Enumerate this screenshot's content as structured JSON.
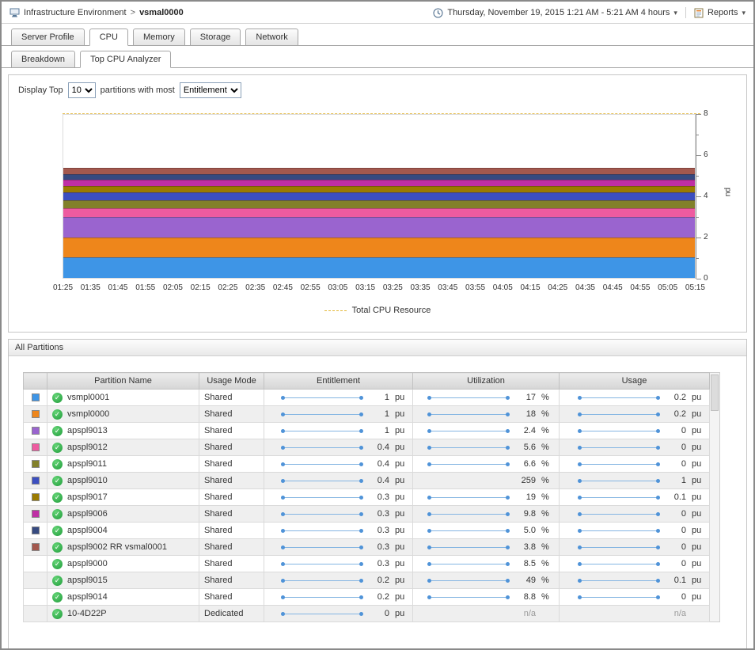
{
  "breadcrumb": {
    "root": "Infrastructure Environment",
    "separator": ">",
    "current": "vsmal0000"
  },
  "header": {
    "time_range": "Thursday, November 19, 2015 1:21 AM - 5:21 AM 4 hours",
    "reports": "Reports"
  },
  "main_tabs": [
    {
      "label": "Server Profile",
      "active": false
    },
    {
      "label": "CPU",
      "active": true
    },
    {
      "label": "Memory",
      "active": false
    },
    {
      "label": "Storage",
      "active": false
    },
    {
      "label": "Network",
      "active": false
    }
  ],
  "sub_tabs": [
    {
      "label": "Breakdown",
      "active": false
    },
    {
      "label": "Top CPU Analyzer",
      "active": true
    }
  ],
  "controls": {
    "prefix": "Display Top",
    "top_count": "10",
    "middle": "partitions with most",
    "metric": "Entitlement"
  },
  "chart_data": {
    "type": "area",
    "stacked": true,
    "ylabel": "pu",
    "ylim": [
      0,
      8
    ],
    "yticks_major": [
      0,
      2,
      4,
      6,
      8
    ],
    "yticks_minor": [
      1,
      3,
      5,
      7
    ],
    "x": [
      "01:25",
      "01:35",
      "01:45",
      "01:55",
      "02:05",
      "02:15",
      "02:25",
      "02:35",
      "02:45",
      "02:55",
      "03:05",
      "03:15",
      "03:25",
      "03:35",
      "03:45",
      "03:55",
      "04:05",
      "04:15",
      "04:25",
      "04:35",
      "04:45",
      "04:55",
      "05:05",
      "05:15"
    ],
    "series": [
      {
        "name": "vsmpl0001",
        "color": "#3e95e6",
        "value": 1.0
      },
      {
        "name": "vsmpl0000",
        "color": "#ee861b",
        "value": 1.0
      },
      {
        "name": "apspl9013",
        "color": "#9a64cf",
        "value": 1.0
      },
      {
        "name": "apspl9012",
        "color": "#ee5ba0",
        "value": 0.4
      },
      {
        "name": "apspl9011",
        "color": "#82802a",
        "value": 0.4
      },
      {
        "name": "apspl9010",
        "color": "#3c4fc0",
        "value": 0.4
      },
      {
        "name": "apspl9017",
        "color": "#9b7b00",
        "value": 0.3
      },
      {
        "name": "apspl9006",
        "color": "#bf2fa5",
        "value": 0.3
      },
      {
        "name": "apspl9004",
        "color": "#364a80",
        "value": 0.3
      },
      {
        "name": "apspl9002 RR vsmal0001",
        "color": "#a3584e",
        "value": 0.3
      }
    ],
    "total_line": {
      "label": "Total CPU Resource",
      "value": 8,
      "color": "#e8c35b"
    },
    "legend": {
      "label": "Total CPU Resource"
    }
  },
  "partitions_panel": {
    "title": "All Partitions",
    "columns": {
      "swatch": "",
      "name": "Partition Name",
      "mode": "Usage Mode",
      "entitlement": "Entitlement",
      "utilization": "Utilization",
      "usage": "Usage"
    },
    "rows": [
      {
        "swatch": "#3e95e6",
        "name": "vsmpl0001",
        "mode": "Shared",
        "entitlement": {
          "value": "1",
          "unit": "pu",
          "spark": true
        },
        "utilization": {
          "value": "17",
          "unit": "%",
          "spark": true
        },
        "usage": {
          "value": "0.2",
          "unit": "pu",
          "spark": true
        }
      },
      {
        "swatch": "#ee861b",
        "name": "vsmpl0000",
        "mode": "Shared",
        "entitlement": {
          "value": "1",
          "unit": "pu",
          "spark": true
        },
        "utilization": {
          "value": "18",
          "unit": "%",
          "spark": true
        },
        "usage": {
          "value": "0.2",
          "unit": "pu",
          "spark": true
        }
      },
      {
        "swatch": "#9a64cf",
        "name": "apspl9013",
        "mode": "Shared",
        "entitlement": {
          "value": "1",
          "unit": "pu",
          "spark": true
        },
        "utilization": {
          "value": "2.4",
          "unit": "%",
          "spark": true
        },
        "usage": {
          "value": "0",
          "unit": "pu",
          "spark": true
        }
      },
      {
        "swatch": "#ee5ba0",
        "name": "apspl9012",
        "mode": "Shared",
        "entitlement": {
          "value": "0.4",
          "unit": "pu",
          "spark": true
        },
        "utilization": {
          "value": "5.6",
          "unit": "%",
          "spark": true
        },
        "usage": {
          "value": "0",
          "unit": "pu",
          "spark": true
        }
      },
      {
        "swatch": "#82802a",
        "name": "apspl9011",
        "mode": "Shared",
        "entitlement": {
          "value": "0.4",
          "unit": "pu",
          "spark": true
        },
        "utilization": {
          "value": "6.6",
          "unit": "%",
          "spark": true
        },
        "usage": {
          "value": "0",
          "unit": "pu",
          "spark": true
        }
      },
      {
        "swatch": "#3c4fc0",
        "name": "apspl9010",
        "mode": "Shared",
        "entitlement": {
          "value": "0.4",
          "unit": "pu",
          "spark": true
        },
        "utilization": {
          "value": "259",
          "unit": "%",
          "spark": false
        },
        "usage": {
          "value": "1",
          "unit": "pu",
          "spark": true
        }
      },
      {
        "swatch": "#9b7b00",
        "name": "apspl9017",
        "mode": "Shared",
        "entitlement": {
          "value": "0.3",
          "unit": "pu",
          "spark": true
        },
        "utilization": {
          "value": "19",
          "unit": "%",
          "spark": true
        },
        "usage": {
          "value": "0.1",
          "unit": "pu",
          "spark": true
        }
      },
      {
        "swatch": "#bf2fa5",
        "name": "apspl9006",
        "mode": "Shared",
        "entitlement": {
          "value": "0.3",
          "unit": "pu",
          "spark": true
        },
        "utilization": {
          "value": "9.8",
          "unit": "%",
          "spark": true
        },
        "usage": {
          "value": "0",
          "unit": "pu",
          "spark": true
        }
      },
      {
        "swatch": "#364a80",
        "name": "apspl9004",
        "mode": "Shared",
        "entitlement": {
          "value": "0.3",
          "unit": "pu",
          "spark": true
        },
        "utilization": {
          "value": "5.0",
          "unit": "%",
          "spark": true
        },
        "usage": {
          "value": "0",
          "unit": "pu",
          "spark": true
        }
      },
      {
        "swatch": "#a3584e",
        "name": "apspl9002 RR vsmal0001",
        "mode": "Shared",
        "entitlement": {
          "value": "0.3",
          "unit": "pu",
          "spark": true
        },
        "utilization": {
          "value": "3.8",
          "unit": "%",
          "spark": true
        },
        "usage": {
          "value": "0",
          "unit": "pu",
          "spark": true
        }
      },
      {
        "swatch": null,
        "name": "apspl9000",
        "mode": "Shared",
        "entitlement": {
          "value": "0.3",
          "unit": "pu",
          "spark": true
        },
        "utilization": {
          "value": "8.5",
          "unit": "%",
          "spark": true
        },
        "usage": {
          "value": "0",
          "unit": "pu",
          "spark": true
        }
      },
      {
        "swatch": null,
        "name": "apspl9015",
        "mode": "Shared",
        "entitlement": {
          "value": "0.2",
          "unit": "pu",
          "spark": true
        },
        "utilization": {
          "value": "49",
          "unit": "%",
          "spark": true
        },
        "usage": {
          "value": "0.1",
          "unit": "pu",
          "spark": true
        }
      },
      {
        "swatch": null,
        "name": "apspl9014",
        "mode": "Shared",
        "entitlement": {
          "value": "0.2",
          "unit": "pu",
          "spark": true
        },
        "utilization": {
          "value": "8.8",
          "unit": "%",
          "spark": true
        },
        "usage": {
          "value": "0",
          "unit": "pu",
          "spark": true
        }
      },
      {
        "swatch": null,
        "name": "10-4D22P",
        "mode": "Dedicated",
        "entitlement": {
          "value": "0",
          "unit": "pu",
          "spark": true
        },
        "utilization": {
          "value": "n/a",
          "unit": "",
          "spark": false,
          "na": true
        },
        "usage": {
          "value": "n/a",
          "unit": "",
          "spark": false,
          "na": true
        }
      }
    ]
  }
}
